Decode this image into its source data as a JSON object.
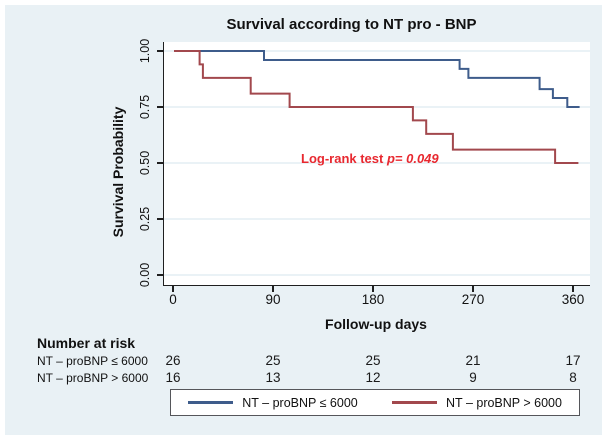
{
  "figure": {
    "background_color": "#e9f1f5",
    "plot_background": "#ffffff",
    "grid_color": "#dde9f1",
    "axis_color": "#1f1f1f"
  },
  "chart_data": {
    "type": "line",
    "subtype": "kaplan-meier-step",
    "title": "Survival according to NT pro - BNP",
    "xlabel": "Follow-up days",
    "ylabel": "Survival Probability",
    "xlim": [
      0,
      383
    ],
    "ylim": [
      0.0,
      1.0
    ],
    "x_ticks": [
      0,
      90,
      180,
      270,
      360
    ],
    "y_ticks": [
      {
        "value": 0.0,
        "label": "0.00"
      },
      {
        "value": 0.25,
        "label": "0.25"
      },
      {
        "value": 0.5,
        "label": "0.50"
      },
      {
        "value": 0.75,
        "label": "0.75"
      },
      {
        "value": 1.0,
        "label": "1.00"
      }
    ],
    "grid": "horizontal",
    "legend_position": "bottom",
    "annotation": {
      "prefix": "Log-rank test ",
      "value": "p= 0.049",
      "color": "#e8282f"
    },
    "series": [
      {
        "name": "NT – proBNP ≤ 6000",
        "color": "#3e5c8b",
        "steps": [
          [
            0,
            1.0
          ],
          [
            81,
            1.0
          ],
          [
            81,
            0.96
          ],
          [
            257,
            0.96
          ],
          [
            257,
            0.92
          ],
          [
            265,
            0.92
          ],
          [
            265,
            0.88
          ],
          [
            329,
            0.88
          ],
          [
            329,
            0.83
          ],
          [
            341,
            0.83
          ],
          [
            341,
            0.79
          ],
          [
            354,
            0.79
          ],
          [
            354,
            0.75
          ],
          [
            365,
            0.75
          ]
        ]
      },
      {
        "name": "NT – proBNP > 6000",
        "color": "#a2484d",
        "steps": [
          [
            0,
            1.0
          ],
          [
            23,
            1.0
          ],
          [
            23,
            0.94
          ],
          [
            26,
            0.94
          ],
          [
            26,
            0.88
          ],
          [
            69,
            0.88
          ],
          [
            69,
            0.81
          ],
          [
            104,
            0.81
          ],
          [
            104,
            0.75
          ],
          [
            215,
            0.75
          ],
          [
            215,
            0.69
          ],
          [
            227,
            0.69
          ],
          [
            227,
            0.63
          ],
          [
            251,
            0.63
          ],
          [
            251,
            0.56
          ],
          [
            343,
            0.56
          ],
          [
            343,
            0.5
          ],
          [
            364,
            0.5
          ]
        ]
      }
    ]
  },
  "risk_table": {
    "header": "Number at risk",
    "rows": [
      {
        "label": "NT – proBNP ≤ 6000",
        "values": [
          "26",
          "25",
          "25",
          "21",
          "17"
        ]
      },
      {
        "label": "NT – proBNP > 6000",
        "values": [
          "16",
          "13",
          "12",
          "9",
          "8"
        ]
      }
    ]
  },
  "legend": {
    "items": [
      {
        "label": "NT – proBNP ≤ 6000",
        "color": "#3e5c8b"
      },
      {
        "label": "NT – proBNP > 6000",
        "color": "#a2484d"
      }
    ]
  }
}
